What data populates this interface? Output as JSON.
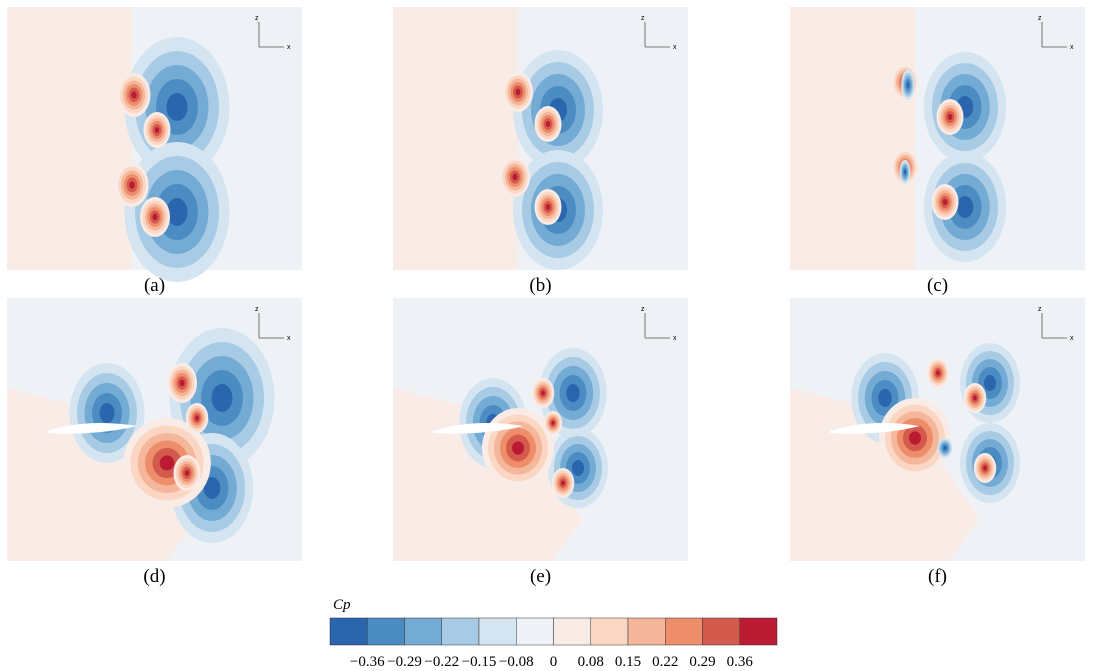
{
  "panels": [
    {
      "label": "(a)"
    },
    {
      "label": "(b)"
    },
    {
      "label": "(c)"
    },
    {
      "label": "(d)"
    },
    {
      "label": "(e)"
    },
    {
      "label": "(f)"
    }
  ],
  "axes": {
    "z": "z",
    "x": "x"
  },
  "colorbar": {
    "label": "Cp",
    "colors": [
      "#2a65ad",
      "#4b8cc3",
      "#74abd4",
      "#a7cbe4",
      "#d4e5f1",
      "#eef2f7",
      "#f9ebe6",
      "#fbd6c2",
      "#f5b79b",
      "#ee8d6a",
      "#d45a4d",
      "#bb1a33"
    ],
    "ticks": [
      "−0.36",
      "−0.29",
      "−0.22",
      "−0.15",
      "−0.08",
      "0",
      "0.08",
      "0.15",
      "0.22",
      "0.29",
      "0.36"
    ]
  }
}
